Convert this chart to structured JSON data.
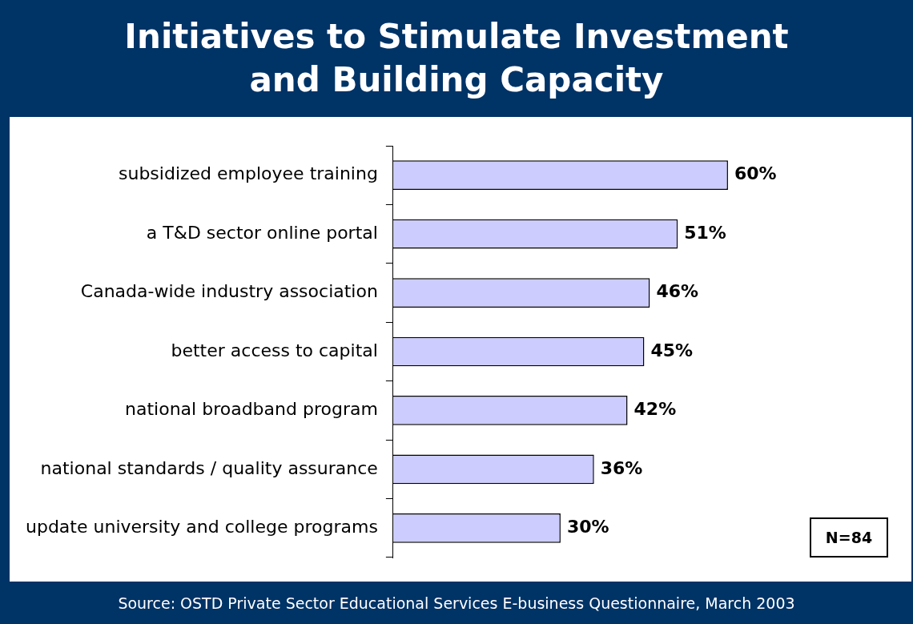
{
  "chart_data": {
    "type": "bar",
    "orientation": "horizontal",
    "title": "Initiatives to Stimulate Investment and Building Capacity",
    "categories": [
      "subsidized employee training",
      "a T&D sector online portal",
      "Canada-wide industry association",
      "better access to capital",
      "national broadband program",
      "national standards / quality assurance",
      "update university and college programs"
    ],
    "values": [
      60,
      51,
      46,
      45,
      42,
      36,
      30
    ],
    "value_labels": [
      "60%",
      "51%",
      "46%",
      "45%",
      "42%",
      "36%",
      "30%"
    ],
    "color": "#ccccff",
    "annotations": [
      "N=84",
      "Source:  OSTD Private Sector Educational Services E-business Questionnaire, March 2003"
    ],
    "legend": false
  }
}
